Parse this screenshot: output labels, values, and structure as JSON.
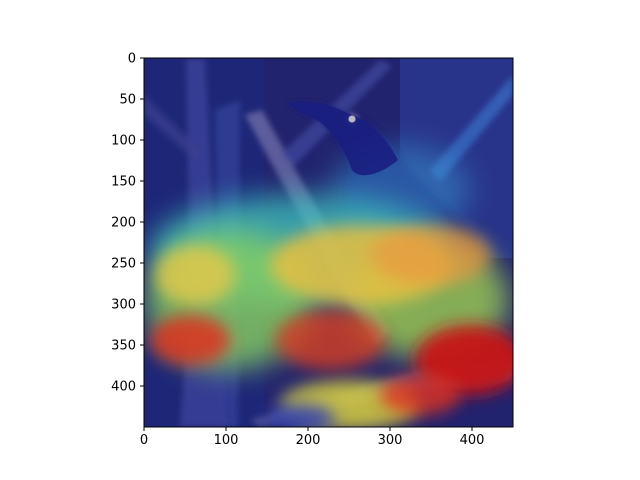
{
  "chart_data": {
    "type": "heatmap",
    "title": "",
    "xlabel": "",
    "ylabel": "",
    "description_source": "Grad-CAM style attention heatmap (jet colormap) overlaid on a photo of a dark bird perched on branches",
    "xlim": [
      0,
      450
    ],
    "ylim": [
      450,
      0
    ],
    "x_ticks": [
      0,
      100,
      200,
      300,
      400
    ],
    "y_ticks": [
      0,
      50,
      100,
      150,
      200,
      250,
      300,
      350,
      400
    ],
    "colormap": "jet",
    "hotspots": [
      {
        "region": "lower-right branch / perch",
        "x": 420,
        "y": 360,
        "intensity": 1.0
      },
      {
        "region": "bird legs / feet",
        "x": 340,
        "y": 345,
        "intensity": 0.95
      },
      {
        "region": "left branch",
        "x": 195,
        "y": 340,
        "intensity": 0.9
      },
      {
        "region": "bird belly",
        "x": 300,
        "y": 260,
        "intensity": 0.75
      },
      {
        "region": "bird lower body",
        "x": 400,
        "y": 265,
        "intensity": 0.7
      },
      {
        "region": "left mid foliage",
        "x": 190,
        "y": 265,
        "intensity": 0.65
      },
      {
        "region": "bottom branch",
        "x": 360,
        "y": 420,
        "intensity": 0.6
      },
      {
        "region": "bird wing",
        "x": 330,
        "y": 170,
        "intensity": 0.35
      }
    ]
  }
}
